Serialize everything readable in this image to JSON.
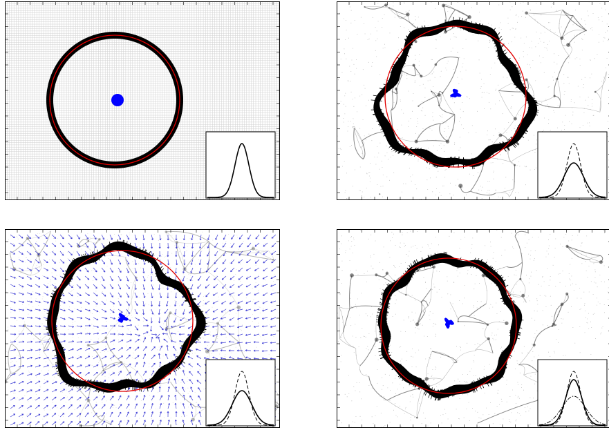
{
  "figure": {
    "panels": [
      {
        "id": "panel-uniform-grid",
        "background": "uniform-grid",
        "ring": "smooth",
        "velocity_arrows": false,
        "inset_curves": [
          "solid"
        ]
      },
      {
        "id": "panel-web-distorted",
        "background": "cosmic-web",
        "ring": "distorted",
        "velocity_arrows": false,
        "inset_curves": [
          "solid",
          "dashed"
        ]
      },
      {
        "id": "panel-velocity-field",
        "background": "cosmic-web-faint",
        "ring": "distorted",
        "velocity_arrows": true,
        "inset_curves": [
          "solid",
          "dashed"
        ]
      },
      {
        "id": "panel-reconstructed",
        "background": "cosmic-web",
        "ring": "near-circle",
        "velocity_arrows": false,
        "inset_curves": [
          "solid",
          "dashed",
          "dash-dot"
        ]
      }
    ],
    "colors": {
      "ring": "#000000",
      "reference_circle": "#e00000",
      "center_blob": "#0000ff",
      "arrows": "#1a1acc",
      "grid": "#cfcfcf",
      "web": "#333333"
    }
  }
}
